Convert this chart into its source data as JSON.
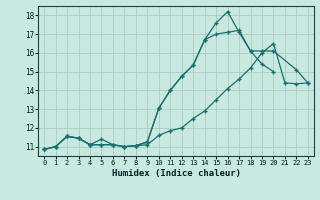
{
  "xlabel": "Humidex (Indice chaleur)",
  "bg_color": "#c8e8e0",
  "grid_color": "#aaccc4",
  "line_color": "#1a7070",
  "xlim": [
    -0.5,
    23.5
  ],
  "ylim": [
    10.5,
    18.5
  ],
  "xticks": [
    0,
    1,
    2,
    3,
    4,
    5,
    6,
    7,
    8,
    9,
    10,
    11,
    12,
    13,
    14,
    15,
    16,
    17,
    18,
    19,
    20,
    21,
    22,
    23
  ],
  "yticks": [
    11,
    12,
    13,
    14,
    15,
    16,
    17,
    18
  ],
  "line1_x": [
    0,
    1,
    2,
    3,
    4,
    5,
    6,
    7,
    8,
    9,
    10,
    11,
    12,
    13,
    14,
    15,
    16,
    17,
    18,
    19,
    20
  ],
  "line1_y": [
    10.85,
    11.0,
    11.55,
    11.45,
    11.1,
    11.1,
    11.1,
    11.0,
    11.05,
    11.25,
    13.05,
    14.0,
    14.75,
    15.35,
    16.7,
    17.6,
    18.2,
    17.1,
    16.1,
    15.4,
    15.0
  ],
  "line2_x": [
    0,
    1,
    2,
    3,
    4,
    5,
    6,
    7,
    8,
    9,
    10,
    11,
    12,
    13,
    14,
    15,
    16,
    17,
    18,
    19,
    20,
    22,
    23
  ],
  "line2_y": [
    10.85,
    11.0,
    11.55,
    11.45,
    11.1,
    11.4,
    11.1,
    11.0,
    11.05,
    11.25,
    13.05,
    14.0,
    14.75,
    15.35,
    16.7,
    17.0,
    17.1,
    17.2,
    16.1,
    16.1,
    16.1,
    15.1,
    14.4
  ],
  "line3_x": [
    0,
    1,
    2,
    3,
    4,
    5,
    6,
    7,
    8,
    9,
    10,
    11,
    12,
    13,
    14,
    15,
    16,
    17,
    18,
    19,
    20,
    21,
    22,
    23
  ],
  "line3_y": [
    10.85,
    11.0,
    11.55,
    11.45,
    11.1,
    11.1,
    11.1,
    11.0,
    11.05,
    11.1,
    11.6,
    11.85,
    12.0,
    12.5,
    12.9,
    13.5,
    14.1,
    14.6,
    15.2,
    16.0,
    16.5,
    14.4,
    14.35,
    14.4
  ]
}
